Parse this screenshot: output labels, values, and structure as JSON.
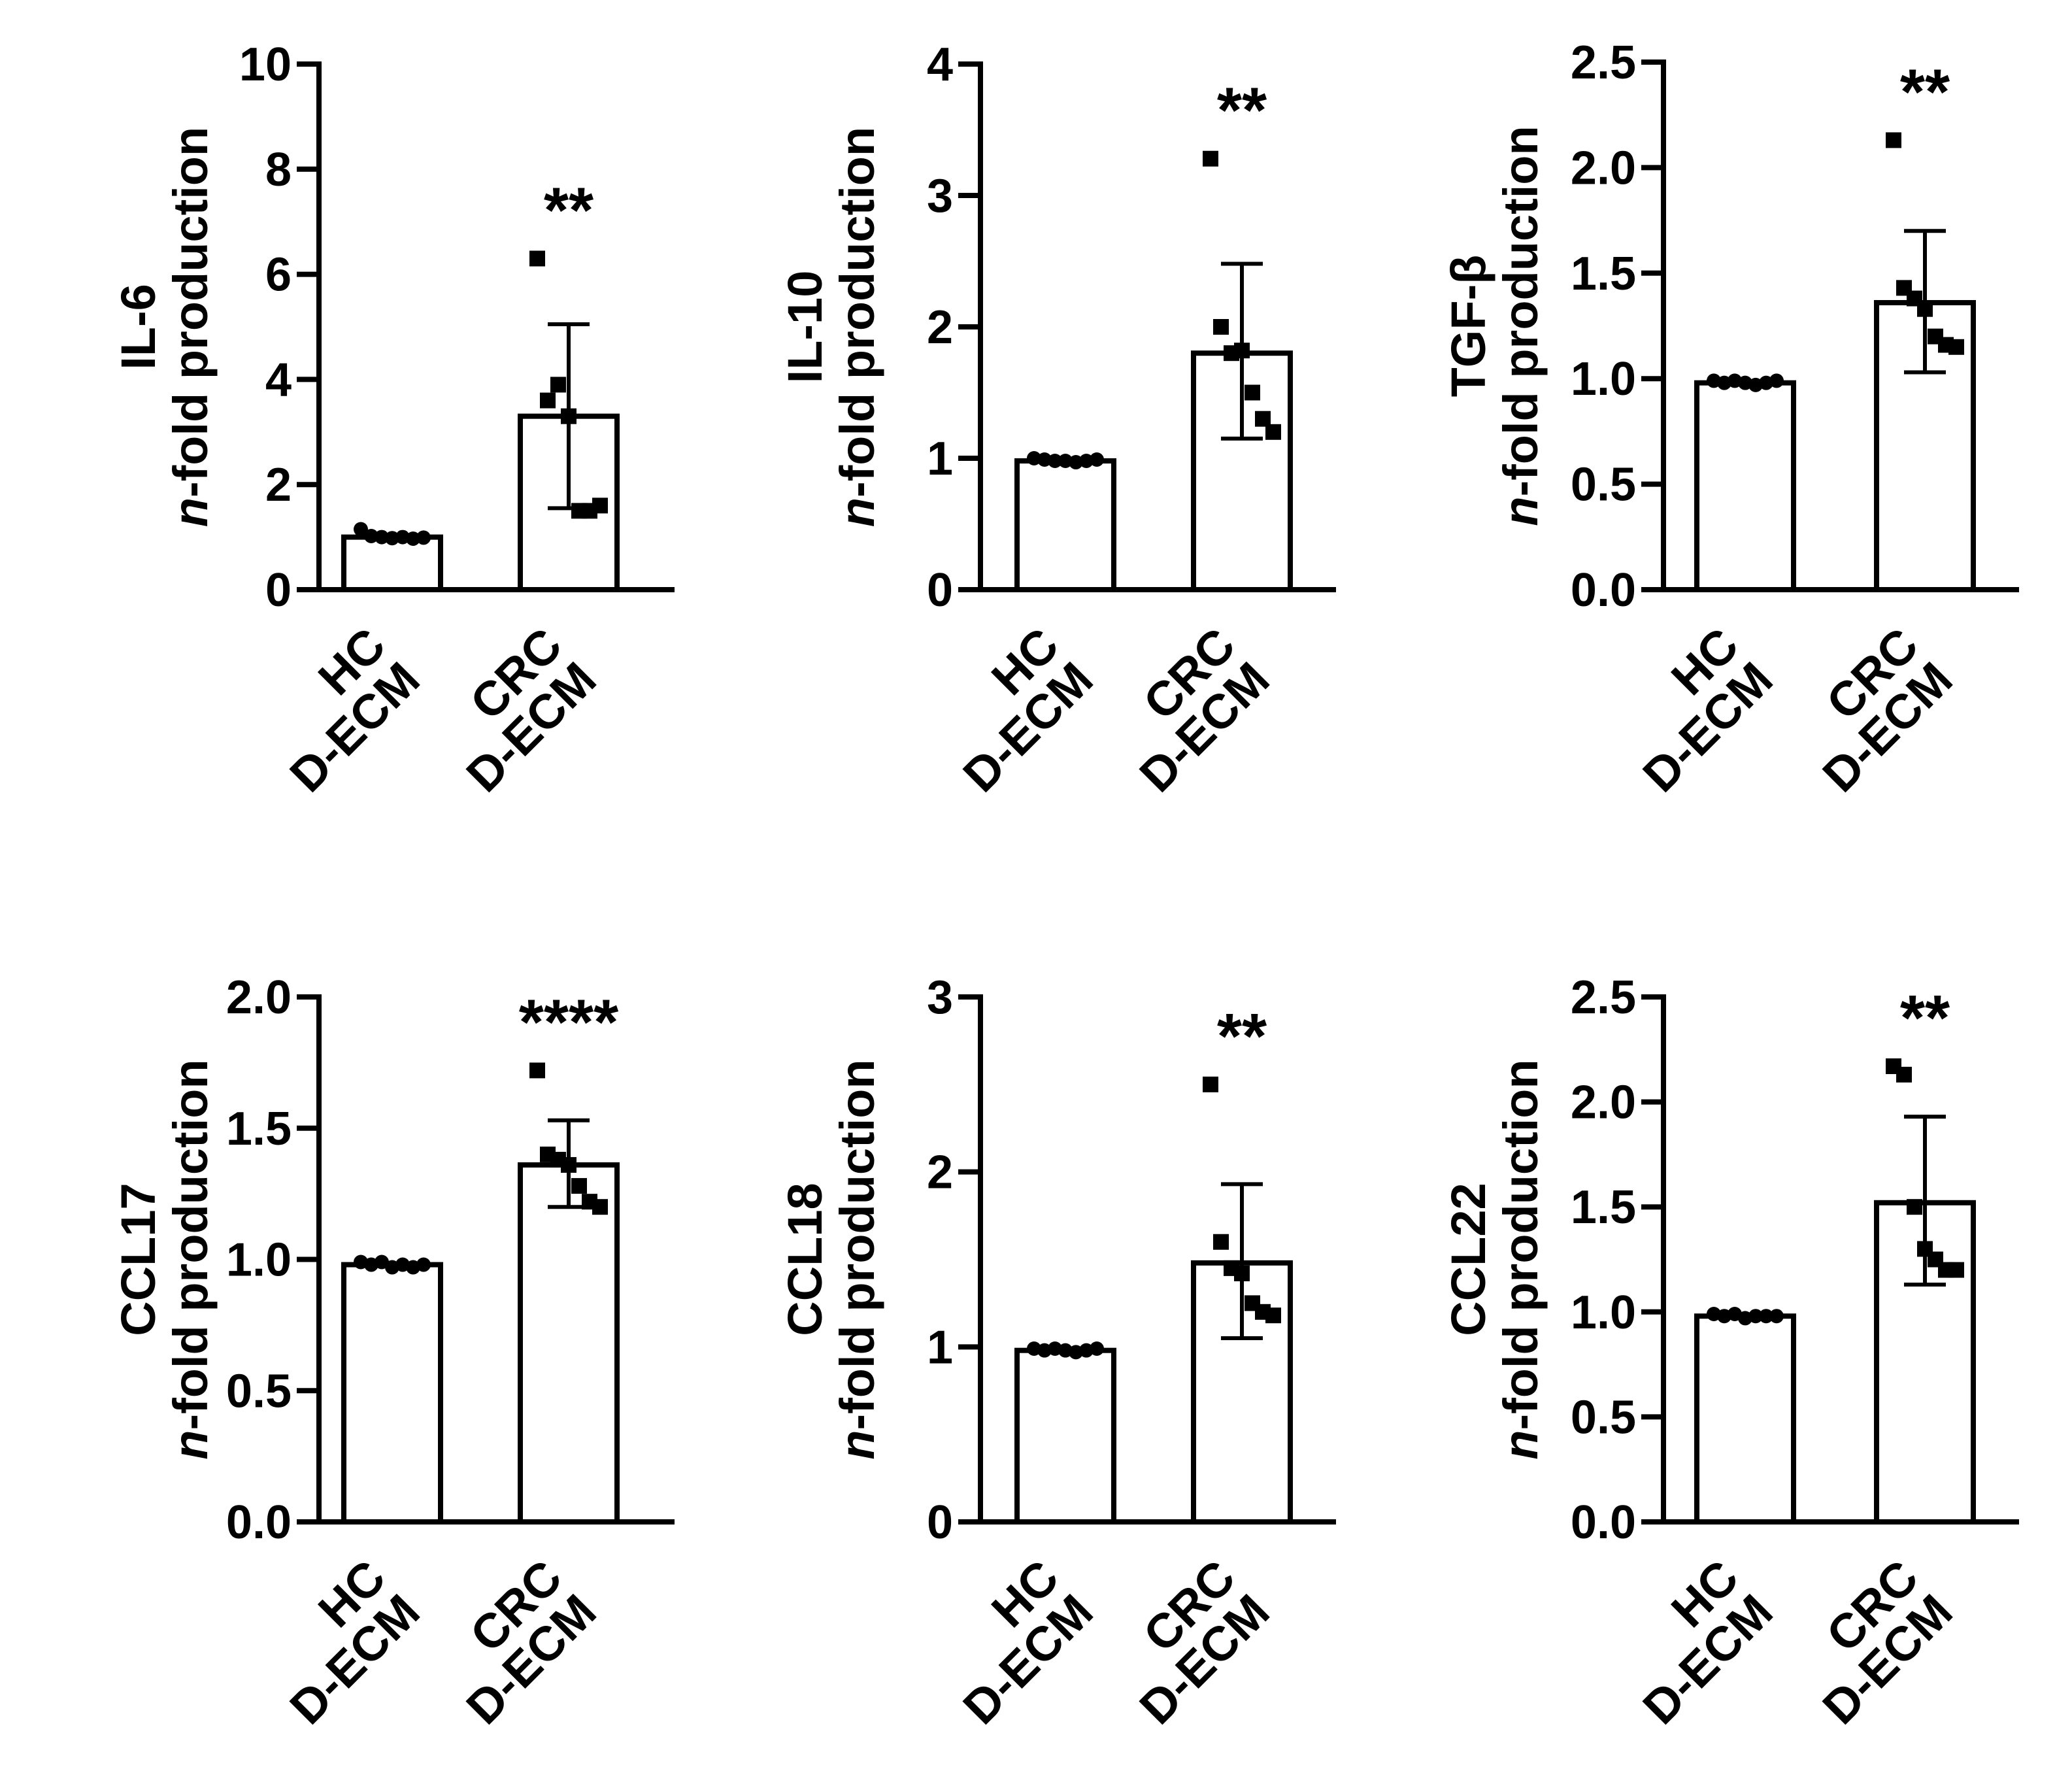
{
  "colors": {
    "ink": "#000000",
    "bar_fill": "#ffffff",
    "background": "#ffffff"
  },
  "chart_data": [
    {
      "type": "bar",
      "id": "il6",
      "ylabel_main": "IL-6",
      "ylabel_italic": "n",
      "ylabel_rest": "-fold production",
      "yticks": [
        0,
        2,
        4,
        6,
        8,
        10
      ],
      "ytick_labels": [
        "0",
        "2",
        "4",
        "6",
        "8",
        "10"
      ],
      "ylim": [
        0,
        10
      ],
      "categories": [
        {
          "line1": "HC",
          "line2": "D-ECM",
          "mean": 1.0,
          "sd_low": 1.0,
          "sd_high": 1.0,
          "points": [
            1.15,
            1.02,
            1.0,
            0.98,
            1.0,
            0.97,
            0.99
          ],
          "marker": "circle"
        },
        {
          "line1": "CRC",
          "line2": "D-ECM",
          "mean": 3.3,
          "sd_low": 1.55,
          "sd_high": 5.05,
          "points": [
            6.3,
            3.6,
            3.9,
            3.3,
            1.5,
            1.5,
            1.6
          ],
          "marker": "square",
          "significance": "**"
        }
      ]
    },
    {
      "type": "bar",
      "id": "il10",
      "ylabel_main": "IL-10",
      "ylabel_italic": "n",
      "ylabel_rest": "-fold production",
      "yticks": [
        0,
        1,
        2,
        3,
        4
      ],
      "ytick_labels": [
        "0",
        "1",
        "2",
        "3",
        "4"
      ],
      "ylim": [
        0,
        4
      ],
      "categories": [
        {
          "line1": "HC",
          "line2": "D-ECM",
          "mean": 0.98,
          "sd_low": 0.98,
          "sd_high": 0.98,
          "points": [
            1.0,
            0.99,
            0.98,
            0.98,
            0.97,
            0.98,
            0.99
          ],
          "marker": "circle"
        },
        {
          "line1": "CRC",
          "line2": "D-ECM",
          "mean": 1.8,
          "sd_low": 1.15,
          "sd_high": 2.48,
          "points": [
            3.28,
            2.0,
            1.8,
            1.82,
            1.5,
            1.3,
            1.2
          ],
          "marker": "square",
          "significance": "**"
        }
      ]
    },
    {
      "type": "bar",
      "id": "tgfb",
      "ylabel_main": "TGF-β",
      "ylabel_italic": "n",
      "ylabel_rest": "-fold production",
      "yticks": [
        0,
        0.5,
        1.0,
        1.5,
        2.0,
        2.5
      ],
      "ytick_labels": [
        "0.0",
        "0.5",
        "1.0",
        "1.5",
        "2.0",
        "2.5"
      ],
      "ylim": [
        0,
        2.5
      ],
      "categories": [
        {
          "line1": "HC",
          "line2": "D-ECM",
          "mean": 0.98,
          "sd_low": 0.98,
          "sd_high": 0.98,
          "points": [
            0.99,
            0.98,
            0.99,
            0.98,
            0.97,
            0.98,
            0.99
          ],
          "marker": "circle"
        },
        {
          "line1": "CRC",
          "line2": "D-ECM",
          "mean": 1.36,
          "sd_low": 1.03,
          "sd_high": 1.7,
          "points": [
            2.13,
            1.43,
            1.38,
            1.33,
            1.2,
            1.16,
            1.15
          ],
          "marker": "square",
          "significance": "**"
        }
      ]
    },
    {
      "type": "bar",
      "id": "ccl17",
      "ylabel_main": "CCL17",
      "ylabel_italic": "n",
      "ylabel_rest": "-fold production",
      "yticks": [
        0,
        0.5,
        1.0,
        1.5,
        2.0
      ],
      "ytick_labels": [
        "0.0",
        "0.5",
        "1.0",
        "1.5",
        "2.0"
      ],
      "ylim": [
        0,
        2.0
      ],
      "categories": [
        {
          "line1": "HC",
          "line2": "D-ECM",
          "mean": 0.98,
          "sd_low": 0.98,
          "sd_high": 0.98,
          "points": [
            0.99,
            0.98,
            0.99,
            0.97,
            0.98,
            0.97,
            0.98
          ],
          "marker": "circle"
        },
        {
          "line1": "CRC",
          "line2": "D-ECM",
          "mean": 1.36,
          "sd_low": 1.2,
          "sd_high": 1.53,
          "points": [
            1.72,
            1.4,
            1.38,
            1.36,
            1.28,
            1.22,
            1.2
          ],
          "marker": "square",
          "significance": "****"
        }
      ]
    },
    {
      "type": "bar",
      "id": "ccl18",
      "ylabel_main": "CCL18",
      "ylabel_italic": "n",
      "ylabel_rest": "-fold production",
      "yticks": [
        0,
        1,
        2,
        3
      ],
      "ytick_labels": [
        "0",
        "1",
        "2",
        "3"
      ],
      "ylim": [
        0,
        3
      ],
      "categories": [
        {
          "line1": "HC",
          "line2": "D-ECM",
          "mean": 0.98,
          "sd_low": 0.98,
          "sd_high": 0.98,
          "points": [
            0.99,
            0.98,
            0.99,
            0.98,
            0.97,
            0.98,
            0.99
          ],
          "marker": "circle"
        },
        {
          "line1": "CRC",
          "line2": "D-ECM",
          "mean": 1.48,
          "sd_low": 1.05,
          "sd_high": 1.93,
          "points": [
            2.5,
            1.6,
            1.45,
            1.42,
            1.25,
            1.2,
            1.18
          ],
          "marker": "square",
          "significance": "**"
        }
      ]
    },
    {
      "type": "bar",
      "id": "ccl22",
      "ylabel_main": "CCL22",
      "ylabel_italic": "n",
      "ylabel_rest": "-fold production",
      "yticks": [
        0,
        0.5,
        1.0,
        1.5,
        2.0,
        2.5
      ],
      "ytick_labels": [
        "0.0",
        "0.5",
        "1.0",
        "1.5",
        "2.0",
        "2.5"
      ],
      "ylim": [
        0,
        2.5
      ],
      "categories": [
        {
          "line1": "HC",
          "line2": "D-ECM",
          "mean": 0.98,
          "sd_low": 0.98,
          "sd_high": 0.98,
          "points": [
            0.99,
            0.98,
            0.99,
            0.97,
            0.98,
            0.98,
            0.98
          ],
          "marker": "circle"
        },
        {
          "line1": "CRC",
          "line2": "D-ECM",
          "mean": 1.52,
          "sd_low": 1.13,
          "sd_high": 1.93,
          "points": [
            2.17,
            2.13,
            1.5,
            1.3,
            1.25,
            1.2,
            1.2
          ],
          "marker": "square",
          "significance": "**"
        }
      ]
    }
  ]
}
